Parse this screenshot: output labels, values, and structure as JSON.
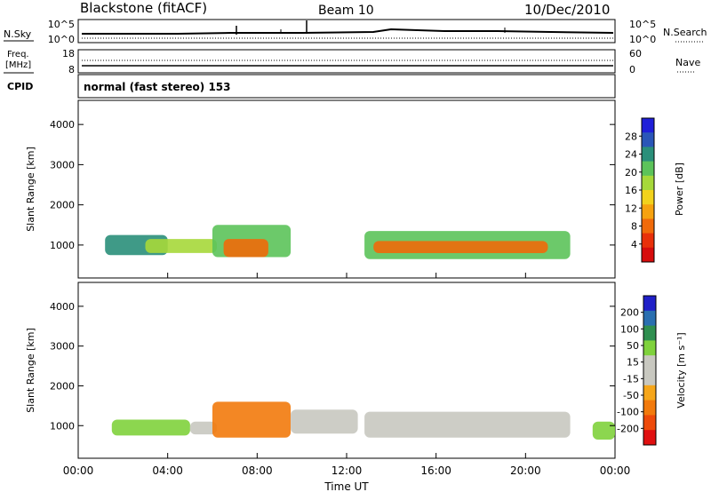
{
  "header": {
    "station": "Blackstone (fitACF)",
    "beam": "Beam 10",
    "date": "10/Dec/2010"
  },
  "noise_panel": {
    "left_label": "N.Sky",
    "right_label": "N.Search",
    "left_ticks": [
      "10^5",
      "10^0"
    ],
    "right_ticks": [
      "10^5",
      "10^0"
    ]
  },
  "freq_panel": {
    "left_label_1": "Freq.",
    "left_label_2": "[MHz]",
    "left_ticks": [
      "18",
      "8"
    ],
    "right_label": "Nave",
    "right_ticks": [
      "60",
      "0"
    ]
  },
  "cpid": {
    "label": "CPID",
    "value": "normal (fast stereo) 153"
  },
  "x_axis": {
    "label": "Time UT",
    "ticks": [
      "00:00",
      "04:00",
      "08:00",
      "12:00",
      "16:00",
      "20:00",
      "00:00"
    ],
    "range_hours": [
      0,
      24
    ]
  },
  "chart_data": [
    {
      "type": "heatmap",
      "name": "power",
      "ylabel": "Slant Range [km]",
      "ylim": [
        180,
        4600
      ],
      "yticks": [
        "1000",
        "2000",
        "3000",
        "4000"
      ],
      "ytick_values": [
        1000,
        2000,
        3000,
        4000
      ],
      "colorbar_label": "Power [dB]",
      "colorbar_ticks": [
        "28",
        "24",
        "20",
        "16",
        "12",
        "8",
        "4"
      ],
      "colorbar_colors": [
        "#1f1fd8",
        "#2a56b8",
        "#2a8f7a",
        "#5cc35a",
        "#a6d83a",
        "#f2d21c",
        "#f6a20f",
        "#f06a0a",
        "#e8300a",
        "#d60c0c"
      ],
      "regions": [
        {
          "t_start": 1.2,
          "t_end": 4.0,
          "r_low": 750,
          "r_high": 1250,
          "level": 8
        },
        {
          "t_start": 3.0,
          "t_end": 6.2,
          "r_low": 800,
          "r_high": 1150,
          "level": 14
        },
        {
          "t_start": 6.0,
          "t_end": 9.5,
          "r_low": 700,
          "r_high": 1500,
          "level": 12
        },
        {
          "t_start": 6.5,
          "t_end": 8.5,
          "r_low": 700,
          "r_high": 1150,
          "level": 26
        },
        {
          "t_start": 12.8,
          "t_end": 22.0,
          "r_low": 650,
          "r_high": 1350,
          "level": 12
        },
        {
          "t_start": 13.2,
          "t_end": 21.0,
          "r_low": 800,
          "r_high": 1100,
          "level": 24
        }
      ]
    },
    {
      "type": "heatmap",
      "name": "velocity",
      "ylabel": "Slant Range [km]",
      "ylim": [
        180,
        4600
      ],
      "yticks": [
        "1000",
        "2000",
        "3000",
        "4000"
      ],
      "ytick_values": [
        1000,
        2000,
        3000,
        4000
      ],
      "colorbar_label": "Velocity [m s⁻¹]",
      "colorbar_ticks": [
        "200",
        "100",
        "50",
        "15",
        "-15",
        "-50",
        "-100",
        "-200"
      ],
      "colorbar_colors": [
        "#2020c8",
        "#2a6fb0",
        "#2f8f50",
        "#7fd23c",
        "#c8c8c0",
        "#c8c8c0",
        "#f6a61a",
        "#f27a0c",
        "#ee4a0a",
        "#e01010"
      ],
      "regions": [
        {
          "t_start": 1.5,
          "t_end": 5.0,
          "r_low": 750,
          "r_high": 1150,
          "v": 60
        },
        {
          "t_start": 5.0,
          "t_end": 6.2,
          "r_low": 780,
          "r_high": 1100,
          "v": 0
        },
        {
          "t_start": 6.0,
          "t_end": 9.5,
          "r_low": 700,
          "r_high": 1600,
          "v": -60
        },
        {
          "t_start": 9.5,
          "t_end": 12.5,
          "r_low": 800,
          "r_high": 1400,
          "v": 0
        },
        {
          "t_start": 12.8,
          "t_end": 22.0,
          "r_low": 700,
          "r_high": 1350,
          "v": 0
        },
        {
          "t_start": 23.0,
          "t_end": 24.0,
          "r_low": 650,
          "r_high": 1100,
          "v": 60
        }
      ]
    }
  ]
}
